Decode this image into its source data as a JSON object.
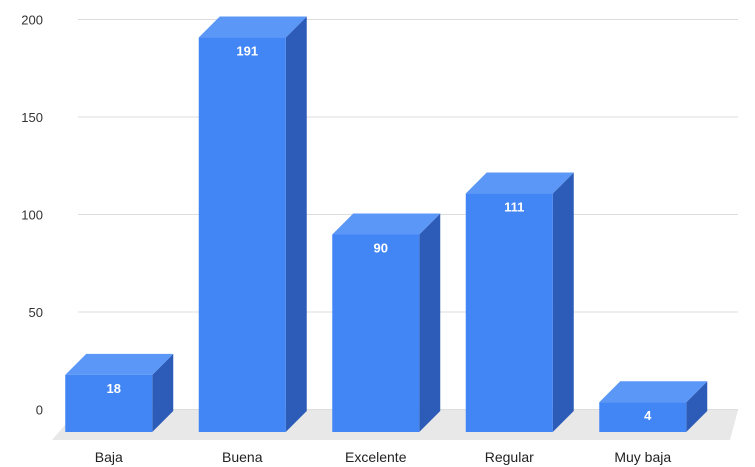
{
  "colors": {
    "bar_front": "#4285f4",
    "bar_top": "#5b97f7",
    "bar_side": "#2d5cb8",
    "floor": "#e8e8e8",
    "grid": "#dddddd",
    "label_inside": "#ffffff",
    "label_outside": "#4285f4"
  },
  "chart_data": {
    "type": "bar",
    "title": "",
    "xlabel": "",
    "ylabel": "",
    "ylim": [
      0,
      200
    ],
    "yticks": [
      0,
      50,
      100,
      150,
      200
    ],
    "grid": true,
    "legend": "none",
    "style": "3d",
    "categories": [
      "Baja",
      "Buena",
      "Excelente",
      "Regular",
      "Muy baja"
    ],
    "series": [
      {
        "values": [
          18,
          191,
          90,
          111,
          4
        ]
      }
    ]
  }
}
